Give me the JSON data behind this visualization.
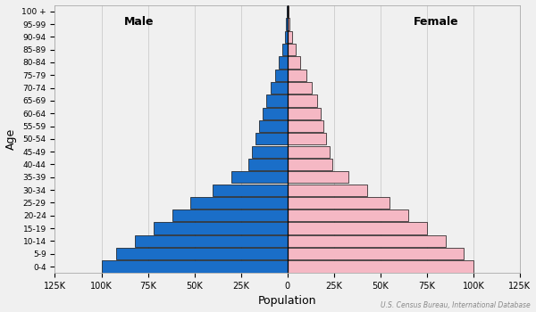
{
  "age_groups": [
    "0-4",
    "5-9",
    "10-14",
    "15-19",
    "20-24",
    "25-29",
    "30-34",
    "35-39",
    "40-44",
    "45-49",
    "50-54",
    "55-59",
    "60-64",
    "65-69",
    "70-74",
    "75-79",
    "80-84",
    "85-89",
    "90-94",
    "95-99",
    "100 +"
  ],
  "male": [
    100000,
    92000,
    82000,
    72000,
    62000,
    52000,
    40000,
    30000,
    21000,
    19000,
    17000,
    15000,
    13500,
    11500,
    9000,
    6500,
    4500,
    2800,
    1500,
    600,
    200
  ],
  "female": [
    100000,
    95000,
    85000,
    75000,
    65000,
    55000,
    43000,
    33000,
    24000,
    22500,
    21000,
    19500,
    18000,
    16000,
    13000,
    10000,
    7000,
    4500,
    2500,
    1000,
    400
  ],
  "male_color": "#1a6ec8",
  "female_color": "#f5b8c4",
  "bar_edge_color": "#111111",
  "bar_linewidth": 0.5,
  "xlabel": "Population",
  "ylabel": "Age",
  "xlim": 125000,
  "background_color": "#f0f0f0",
  "male_label": "Male",
  "female_label": "Female",
  "source_text": "U.S. Census Bureau, International Database",
  "spine_color": "#aaaaaa",
  "grid_color": "#cccccc"
}
